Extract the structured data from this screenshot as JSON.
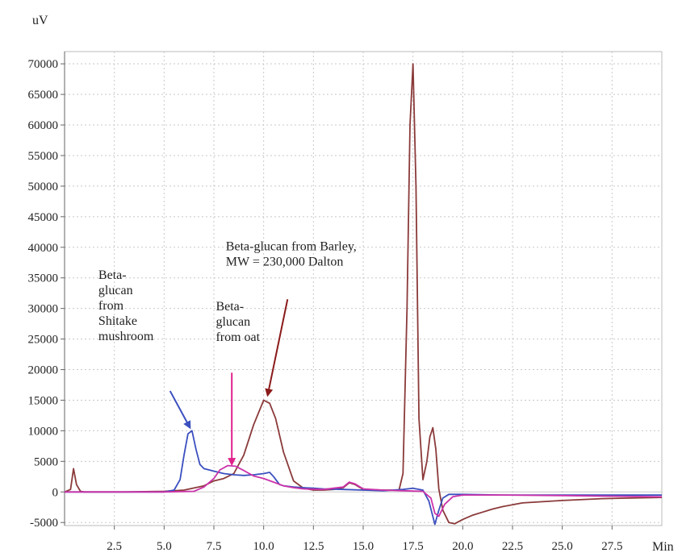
{
  "chart_data": {
    "type": "line",
    "xlabel": "Min",
    "ylabel": "uV",
    "xlim": [
      0,
      30
    ],
    "ylim": [
      -5500,
      72000
    ],
    "grid": true,
    "x_ticks": [
      2.5,
      5.0,
      7.5,
      10.0,
      12.5,
      15.0,
      17.5,
      20.0,
      22.5,
      25.0,
      27.5
    ],
    "x_tick_labels": [
      "2.5",
      "5.0",
      "7.5",
      "10.0",
      "12.5",
      "15.0",
      "17.5",
      "20.0",
      "22.5",
      "25.0",
      "27.5"
    ],
    "y_ticks": [
      -5000,
      0,
      5000,
      10000,
      15000,
      20000,
      25000,
      30000,
      35000,
      40000,
      45000,
      50000,
      55000,
      60000,
      65000,
      70000
    ],
    "y_tick_labels": [
      "-5000",
      "0",
      "5000",
      "10000",
      "15000",
      "20000",
      "25000",
      "30000",
      "35000",
      "40000",
      "45000",
      "50000",
      "55000",
      "60000",
      "65000",
      "70000"
    ],
    "series": [
      {
        "color": "#8b3a3a",
        "x": [
          0,
          0.3,
          0.45,
          0.6,
          0.8,
          1.0,
          3.0,
          5.0,
          6.0,
          7.0,
          7.5,
          8.0,
          8.5,
          9.0,
          9.5,
          10.0,
          10.3,
          10.6,
          11.0,
          11.5,
          12.0,
          12.5,
          13.0,
          13.5,
          14.0,
          14.3,
          14.6,
          15.0,
          16.0,
          16.8,
          17.0,
          17.2,
          17.35,
          17.5,
          17.65,
          17.8,
          18.0,
          18.2,
          18.35,
          18.5,
          18.65,
          18.8,
          19.0,
          19.3,
          19.6,
          20.0,
          20.5,
          21.0,
          21.5,
          22.0,
          23.0,
          25.0,
          27.0,
          30.0
        ],
        "y": [
          0,
          400,
          3800,
          1200,
          100,
          0,
          0,
          100,
          300,
          1000,
          1800,
          2200,
          3000,
          6000,
          11000,
          15000,
          14500,
          12000,
          6500,
          1800,
          600,
          300,
          300,
          400,
          700,
          1500,
          1200,
          400,
          300,
          300,
          3000,
          30000,
          60000,
          70000,
          50000,
          12000,
          2000,
          5000,
          9000,
          10500,
          7000,
          500,
          -3000,
          -5000,
          -5200,
          -4500,
          -3800,
          -3300,
          -2800,
          -2400,
          -1800,
          -1400,
          -1100,
          -900
        ]
      },
      {
        "color": "#3b4fbf",
        "x": [
          0,
          2,
          4,
          5.0,
          5.5,
          5.8,
          6.0,
          6.2,
          6.4,
          6.6,
          6.8,
          7.0,
          7.5,
          8.0,
          8.5,
          9.0,
          9.5,
          10.0,
          10.3,
          10.5,
          10.8,
          11.0,
          11.5,
          12.0,
          12.5,
          13.0,
          14.0,
          15.0,
          16.0,
          17.0,
          17.5,
          18.0,
          18.3,
          18.6,
          18.8,
          19.0,
          19.3,
          20.0,
          22.0,
          25.0,
          30.0
        ],
        "y": [
          0,
          0,
          0,
          0,
          300,
          2000,
          6000,
          9500,
          10000,
          7000,
          4500,
          3800,
          3400,
          3000,
          2800,
          2700,
          2800,
          3000,
          3200,
          2500,
          1200,
          1000,
          800,
          700,
          600,
          500,
          400,
          300,
          200,
          400,
          600,
          300,
          -1500,
          -5300,
          -3000,
          -1000,
          -400,
          -400,
          -500,
          -500,
          -500
        ]
      },
      {
        "color": "#cc33aa",
        "x": [
          0,
          3,
          5,
          6.5,
          7.0,
          7.5,
          7.8,
          8.2,
          8.6,
          9.0,
          9.5,
          10.0,
          10.5,
          11.0,
          11.5,
          12.0,
          13.0,
          14.0,
          14.3,
          14.6,
          15.0,
          16.0,
          17.0,
          18.0,
          18.4,
          18.6,
          18.8,
          19.1,
          19.5,
          20.0,
          22.0,
          25.0,
          27.5,
          30.0
        ],
        "y": [
          0,
          0,
          0,
          100,
          800,
          2200,
          3600,
          4300,
          4200,
          3500,
          2600,
          2200,
          1600,
          1000,
          700,
          500,
          400,
          800,
          1600,
          1300,
          500,
          300,
          200,
          100,
          -1000,
          -3500,
          -4000,
          -2000,
          -800,
          -500,
          -500,
          -600,
          -700,
          -800
        ]
      }
    ],
    "annotations": [
      {
        "lines": [
          "Beta-glucan from Barley,",
          "MW = 230,000 Dalton"
        ],
        "color": "#8b1a1a",
        "text_at": [
          8.1,
          39500
        ],
        "arrow_from": [
          11.2,
          31500
        ],
        "arrow_to": [
          10.2,
          15800
        ]
      },
      {
        "lines": [
          "Beta-",
          "glucan",
          "from",
          "Shitake",
          "mushroom"
        ],
        "color": "#3b4fbf",
        "text_at": [
          1.7,
          34800
        ],
        "arrow_from": [
          5.3,
          16500
        ],
        "arrow_to": [
          6.3,
          10500
        ]
      },
      {
        "lines": [
          "Beta-",
          "glucan",
          "from oat"
        ],
        "color": "#e0228a",
        "text_at": [
          7.6,
          29700
        ],
        "arrow_from": [
          8.4,
          19500
        ],
        "arrow_to": [
          8.4,
          4500
        ]
      }
    ]
  }
}
